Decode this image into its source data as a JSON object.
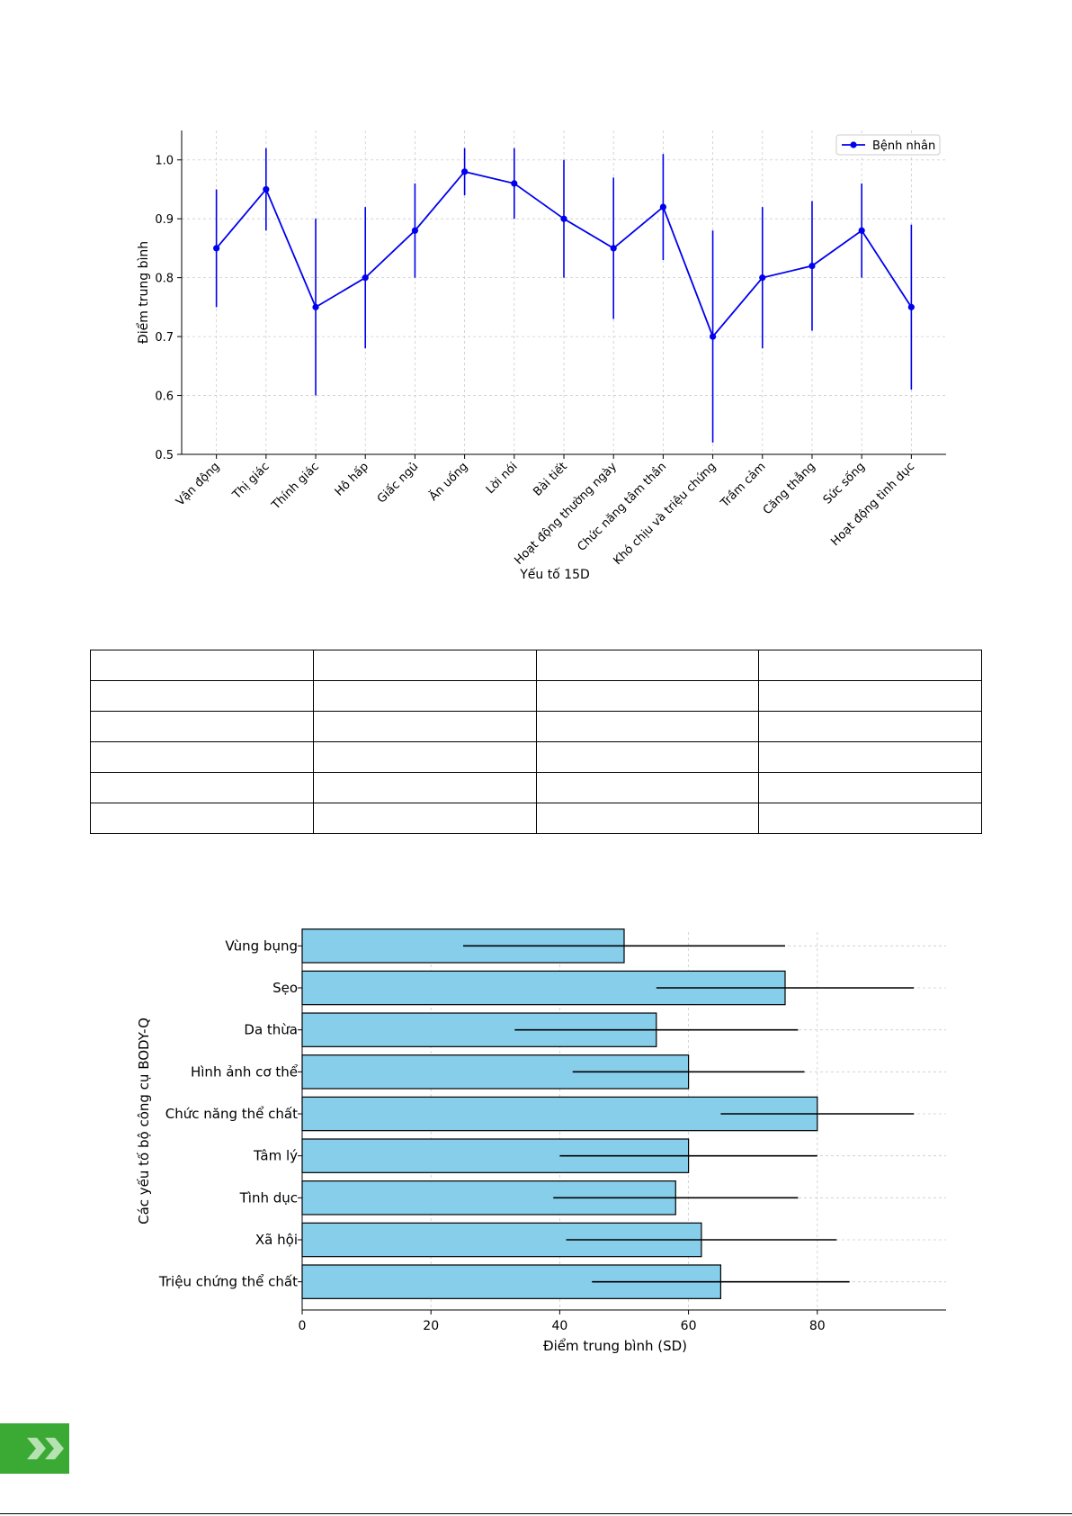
{
  "colors": {
    "line": "#0000ee",
    "bar_fill": "#87ceeb",
    "bar_edge": "#000000",
    "badge": "#3aaa35"
  },
  "badge_icon": "double-chevron-right-icon",
  "table": {
    "rows": 6,
    "cols": 4,
    "cells": []
  },
  "chart_data": [
    {
      "type": "line",
      "title": "",
      "xlabel": "Yếu tố 15D",
      "ylabel": "Điểm trung bình",
      "ylim": [
        0.5,
        1.05
      ],
      "yticks": [
        "0.5",
        "0.6",
        "0.7",
        "0.8",
        "0.9",
        "1.0"
      ],
      "grid": true,
      "legend": "top-right",
      "categories": [
        "Vận động",
        "Thị giác",
        "Thính giác",
        "Hô hấp",
        "Giấc ngủ",
        "Ăn uống",
        "Lời nói",
        "Bài tiết",
        "Hoạt động thường ngày",
        "Chức năng tâm thần",
        "Khó chịu và triệu chứng",
        "Trầm cảm",
        "Căng thẳng",
        "Sức sống",
        "Hoạt động tình dục"
      ],
      "series": [
        {
          "name": "Bệnh nhân",
          "values": [
            0.85,
            0.95,
            0.75,
            0.8,
            0.88,
            0.98,
            0.96,
            0.9,
            0.85,
            0.92,
            0.7,
            0.8,
            0.82,
            0.88,
            0.75
          ],
          "err_low": [
            0.75,
            0.88,
            0.6,
            0.68,
            0.8,
            0.94,
            0.9,
            0.8,
            0.73,
            0.83,
            0.52,
            0.68,
            0.71,
            0.8,
            0.61
          ],
          "err_high": [
            0.95,
            1.02,
            0.9,
            0.92,
            0.96,
            1.02,
            1.02,
            1.0,
            0.97,
            1.01,
            0.88,
            0.92,
            0.93,
            0.96,
            0.89
          ]
        }
      ]
    },
    {
      "type": "bar",
      "orientation": "horizontal",
      "title": "",
      "xlabel": "Điểm trung bình (SD)",
      "ylabel": "Các yếu tố bộ công cụ BODY-Q",
      "xlim": [
        0,
        100
      ],
      "xticks": [
        "0",
        "20",
        "40",
        "60",
        "80"
      ],
      "grid": true,
      "categories": [
        "Vùng bụng",
        "Sẹo",
        "Da thừa",
        "Hình ảnh cơ thể",
        "Chức năng thể chất",
        "Tâm lý",
        "Tình dục",
        "Xã hội",
        "Triệu chứng thể chất"
      ],
      "values": [
        50,
        75,
        55,
        60,
        80,
        60,
        58,
        62,
        65
      ],
      "err_low": [
        25,
        55,
        33,
        42,
        65,
        40,
        39,
        41,
        45
      ],
      "err_high": [
        75,
        95,
        77,
        78,
        95,
        80,
        77,
        83,
        85
      ]
    }
  ]
}
